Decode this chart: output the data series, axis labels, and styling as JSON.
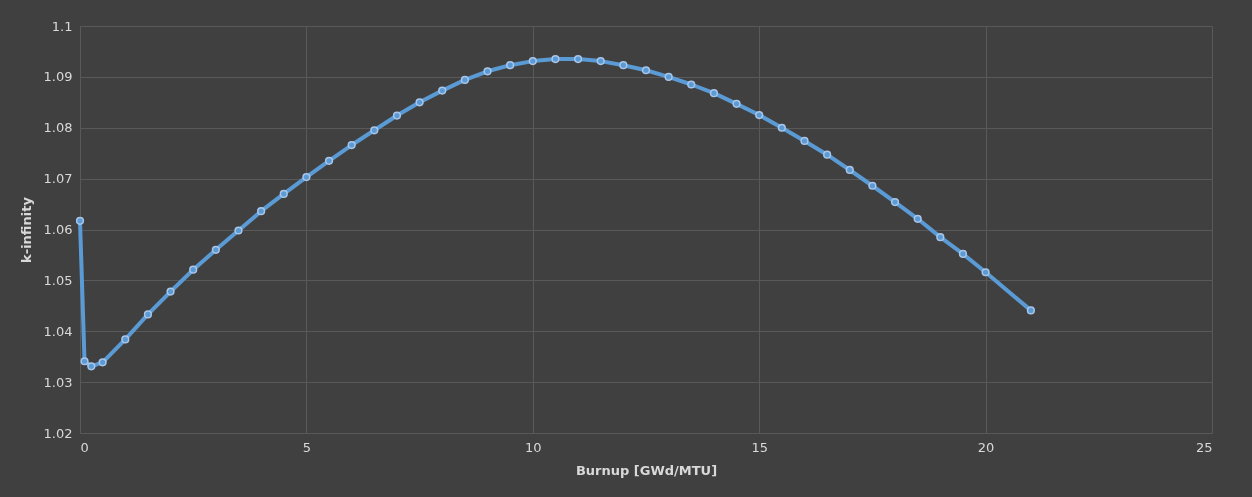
{
  "chart_data": {
    "type": "line",
    "xlabel": "Burnup [GWd/MTU]",
    "ylabel": "k-infinity",
    "x": [
      0,
      0.1,
      0.25,
      0.5,
      1,
      1.5,
      2,
      2.5,
      3,
      3.5,
      4,
      4.5,
      5,
      5.5,
      6,
      6.5,
      7,
      7.5,
      8,
      8.5,
      9,
      9.5,
      10,
      10.5,
      11,
      11.5,
      12,
      12.5,
      13,
      13.5,
      14,
      14.5,
      15,
      15.5,
      16,
      16.5,
      17,
      17.5,
      18,
      18.5,
      19,
      19.5,
      20,
      21
    ],
    "series": [
      {
        "color": "#5b9bd5",
        "values": [
          1.0617,
          1.0341,
          1.0331,
          1.0339,
          1.0384,
          1.0433,
          1.0478,
          1.0521,
          1.056,
          1.0598,
          1.0636,
          1.067,
          1.0703,
          1.0735,
          1.0766,
          1.0795,
          1.0824,
          1.085,
          1.0873,
          1.0894,
          1.0911,
          1.0923,
          1.0931,
          1.0935,
          1.0935,
          1.0931,
          1.0923,
          1.0913,
          1.09,
          1.0885,
          1.0868,
          1.0847,
          1.0825,
          1.08,
          1.0774,
          1.0747,
          1.0717,
          1.0686,
          1.0654,
          1.0621,
          1.0585,
          1.0552,
          1.0516,
          1.0441
        ]
      }
    ],
    "xlim": [
      0,
      25
    ],
    "xticks": [
      0,
      5,
      10,
      15,
      20,
      25
    ],
    "ylim": [
      1.02,
      1.1
    ],
    "yticks": [
      1.02,
      1.03,
      1.04,
      1.05,
      1.06,
      1.07,
      1.08,
      1.09,
      1.1
    ],
    "grid": true,
    "marker": "circle",
    "line_style": "solid"
  }
}
